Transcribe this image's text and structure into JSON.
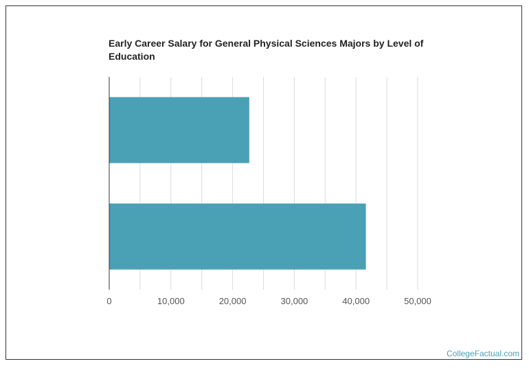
{
  "chart_data": {
    "type": "bar",
    "orientation": "horizontal",
    "title": "Early Career Salary for General Physical Sciences Majors by Level of Education",
    "categories": [
      "",
      ""
    ],
    "values": [
      22700,
      41600
    ],
    "xlim": [
      0,
      50000
    ],
    "x_ticks": [
      0,
      10000,
      20000,
      30000,
      40000,
      50000
    ],
    "x_tick_labels": [
      "0",
      "10,000",
      "20,000",
      "30,000",
      "40,000",
      "50,000"
    ],
    "grid": true,
    "bar_color": "#4aa0b5"
  },
  "watermark": "CollegeFactual.com"
}
